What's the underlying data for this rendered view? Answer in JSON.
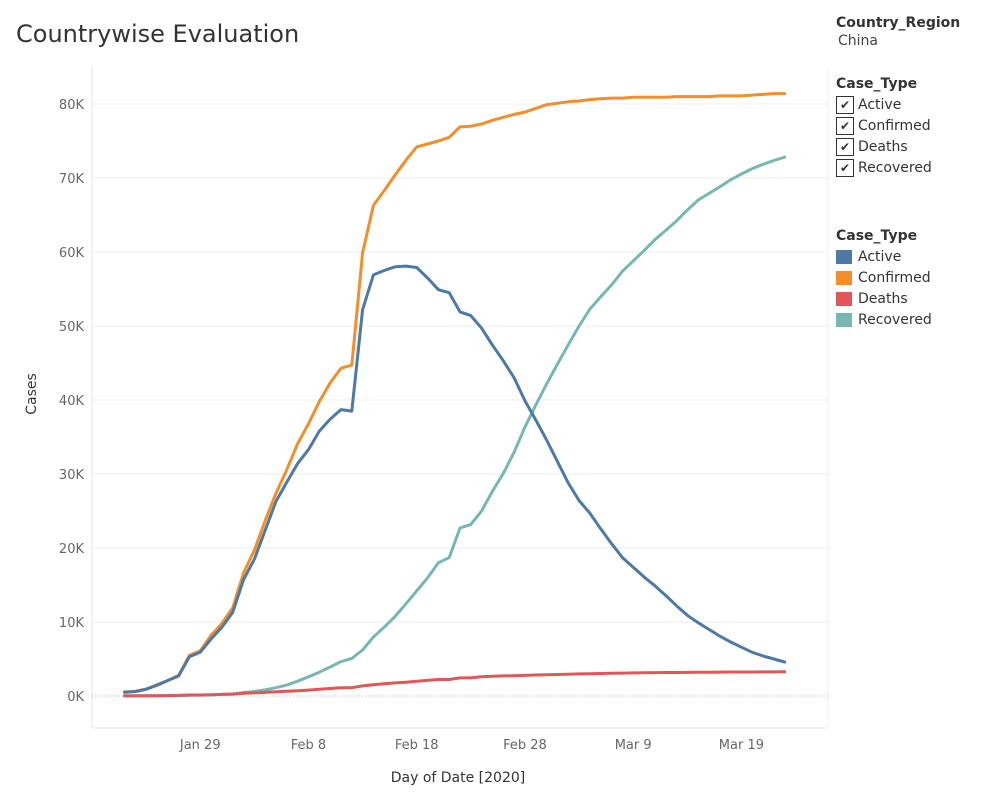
{
  "title": "Countrywise Evaluation",
  "filters": {
    "country_title": "Country_Region",
    "country_value": "China",
    "case_type_title": "Case_Type",
    "checkbox_items": [
      {
        "label": "Active",
        "checked": true
      },
      {
        "label": "Confirmed",
        "checked": true
      },
      {
        "label": "Deaths",
        "checked": true
      },
      {
        "label": "Recovered",
        "checked": true
      }
    ],
    "checkmark": "✔"
  },
  "color_legend": {
    "title": "Case_Type",
    "items": [
      {
        "label": "Active",
        "color": "#4e79a7"
      },
      {
        "label": "Confirmed",
        "color": "#f28e2b"
      },
      {
        "label": "Deaths",
        "color": "#e15759"
      },
      {
        "label": "Recovered",
        "color": "#76b7b2"
      }
    ]
  },
  "chart_data": {
    "type": "line",
    "xlabel": "Day of Date [2020]",
    "ylabel": "Cases",
    "ylim": [
      0,
      85000
    ],
    "yticks": [
      {
        "value": 0,
        "label": "0K"
      },
      {
        "value": 10000,
        "label": "10K"
      },
      {
        "value": 20000,
        "label": "20K"
      },
      {
        "value": 30000,
        "label": "30K"
      },
      {
        "value": 40000,
        "label": "40K"
      },
      {
        "value": 50000,
        "label": "50K"
      },
      {
        "value": 60000,
        "label": "60K"
      },
      {
        "value": 70000,
        "label": "70K"
      },
      {
        "value": 80000,
        "label": "80K"
      }
    ],
    "xlim": [
      "2020-01-19",
      "2020-03-27"
    ],
    "xticks": [
      {
        "value": "2020-01-29",
        "label": "Jan 29"
      },
      {
        "value": "2020-02-08",
        "label": "Feb 8"
      },
      {
        "value": "2020-02-18",
        "label": "Feb 18"
      },
      {
        "value": "2020-02-28",
        "label": "Feb 28"
      },
      {
        "value": "2020-03-09",
        "label": "Mar 9"
      },
      {
        "value": "2020-03-19",
        "label": "Mar 19"
      }
    ],
    "grid": true,
    "legend_position": "right",
    "x": [
      "2020-01-22",
      "2020-01-23",
      "2020-01-24",
      "2020-01-25",
      "2020-01-26",
      "2020-01-27",
      "2020-01-28",
      "2020-01-29",
      "2020-01-30",
      "2020-01-31",
      "2020-02-01",
      "2020-02-02",
      "2020-02-03",
      "2020-02-04",
      "2020-02-05",
      "2020-02-06",
      "2020-02-07",
      "2020-02-08",
      "2020-02-09",
      "2020-02-10",
      "2020-02-11",
      "2020-02-12",
      "2020-02-13",
      "2020-02-14",
      "2020-02-15",
      "2020-02-16",
      "2020-02-17",
      "2020-02-18",
      "2020-02-19",
      "2020-02-20",
      "2020-02-21",
      "2020-02-22",
      "2020-02-23",
      "2020-02-24",
      "2020-02-25",
      "2020-02-26",
      "2020-02-27",
      "2020-02-28",
      "2020-02-29",
      "2020-03-01",
      "2020-03-02",
      "2020-03-03",
      "2020-03-04",
      "2020-03-05",
      "2020-03-06",
      "2020-03-07",
      "2020-03-08",
      "2020-03-09",
      "2020-03-10",
      "2020-03-11",
      "2020-03-12",
      "2020-03-13",
      "2020-03-14",
      "2020-03-15",
      "2020-03-16",
      "2020-03-17",
      "2020-03-18",
      "2020-03-19",
      "2020-03-20",
      "2020-03-21",
      "2020-03-22",
      "2020-03-23"
    ],
    "series": [
      {
        "name": "Active",
        "color": "#4e79a7",
        "values": [
          500,
          600,
          900,
          1500,
          2100,
          2700,
          5300,
          5900,
          7700,
          9300,
          11300,
          15700,
          18500,
          22400,
          26300,
          28900,
          31400,
          33300,
          35800,
          37400,
          38700,
          38500,
          52200,
          56900,
          57500,
          58000,
          58100,
          57900,
          56500,
          54900,
          54500,
          51900,
          51400,
          49700,
          47400,
          45300,
          43000,
          39900,
          37300,
          34600,
          31700,
          28800,
          26400,
          24700,
          22600,
          20600,
          18700,
          17400,
          16100,
          14900,
          13600,
          12200,
          10900,
          9900,
          9000,
          8100,
          7300,
          6600,
          5900,
          5400,
          5000,
          4600
        ]
      },
      {
        "name": "Confirmed",
        "color": "#f28e2b",
        "values": [
          550,
          650,
          950,
          1400,
          2100,
          2800,
          5500,
          6100,
          8200,
          9800,
          11900,
          16600,
          19700,
          23700,
          27400,
          30600,
          34100,
          36800,
          39800,
          42300,
          44300,
          44700,
          59900,
          66300,
          68300,
          70400,
          72400,
          74200,
          74600,
          75000,
          75500,
          76900,
          77000,
          77300,
          77800,
          78200,
          78600,
          78900,
          79400,
          79900,
          80100,
          80300,
          80400,
          80600,
          80700,
          80800,
          80800,
          80900,
          80900,
          80900,
          80900,
          81000,
          81000,
          81000,
          81000,
          81100,
          81100,
          81100,
          81200,
          81300,
          81400,
          81400
        ]
      },
      {
        "name": "Deaths",
        "color": "#e15759",
        "values": [
          17,
          18,
          26,
          42,
          56,
          82,
          131,
          133,
          171,
          213,
          259,
          361,
          425,
          490,
          562,
          632,
          717,
          804,
          904,
          1011,
          1111,
          1116,
          1368,
          1520,
          1662,
          1765,
          1863,
          2002,
          2114,
          2236,
          2236,
          2441,
          2443,
          2593,
          2663,
          2715,
          2744,
          2788,
          2835,
          2870,
          2912,
          2943,
          2981,
          3013,
          3042,
          3070,
          3097,
          3119,
          3136,
          3158,
          3169,
          3176,
          3189,
          3199,
          3213,
          3226,
          3237,
          3245,
          3249,
          3253,
          3259,
          3270
        ]
      },
      {
        "name": "Recovered",
        "color": "#76b7b2",
        "values": [
          28,
          30,
          36,
          39,
          49,
          58,
          101,
          120,
          135,
          214,
          275,
          463,
          614,
          843,
          1115,
          1477,
          1999,
          2596,
          3219,
          3918,
          4636,
          5082,
          6217,
          7977,
          9298,
          10755,
          12462,
          14206,
          15962,
          18014,
          18704,
          22699,
          23187,
          25015,
          27676,
          30084,
          32930,
          36329,
          39320,
          42162,
          44854,
          47450,
          50001,
          52292,
          53944,
          55539,
          57388,
          58804,
          60181,
          61644,
          62901,
          64196,
          65660,
          67017,
          67910,
          68798,
          69755,
          70535,
          71266,
          71857,
          72362,
          72814
        ]
      }
    ]
  }
}
